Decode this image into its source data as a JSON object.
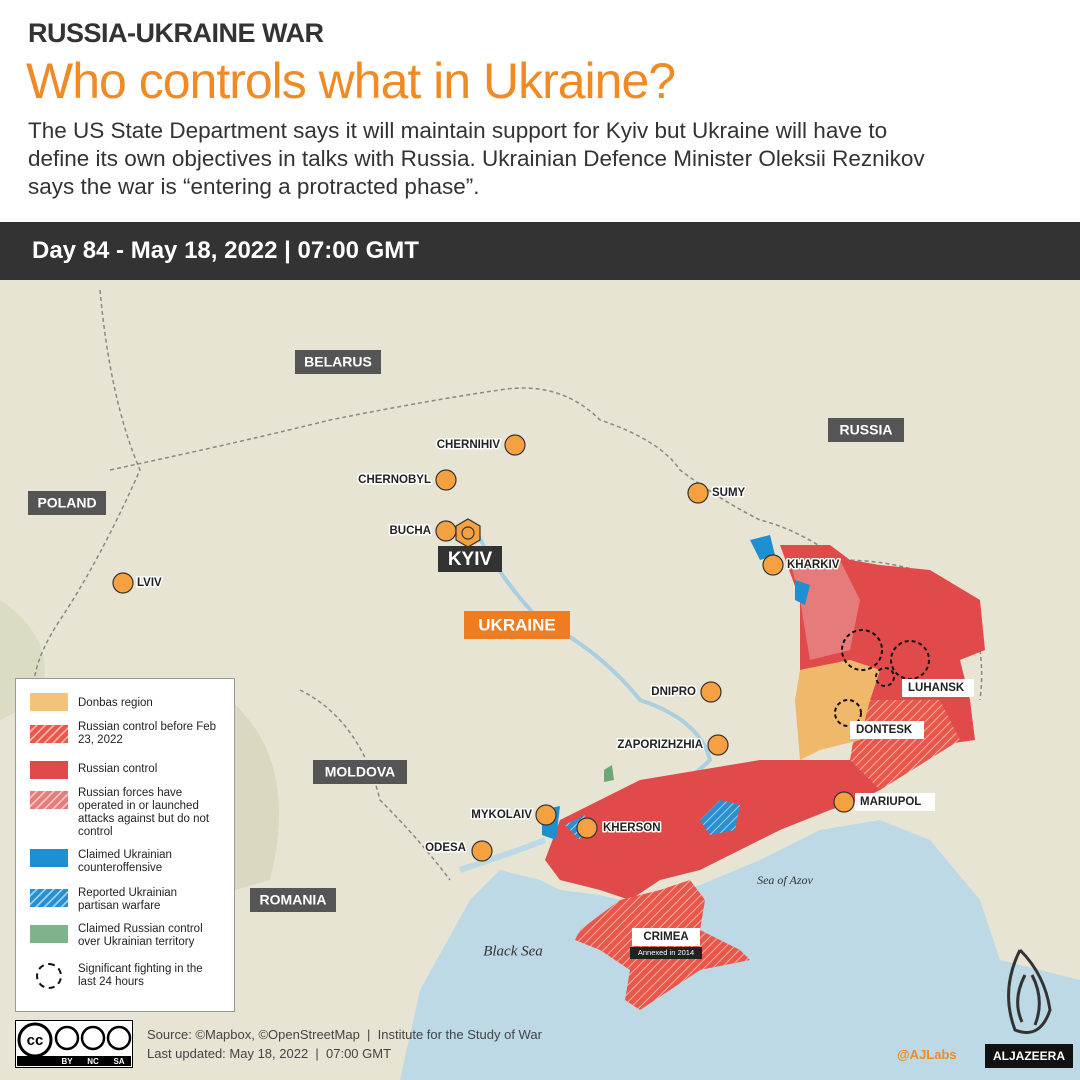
{
  "header": {
    "kicker": "RUSSIA-UKRAINE WAR",
    "title": "Who controls what in Ukraine?",
    "description": [
      "The US State Department says it will maintain support for Kyiv but Ukraine will have to",
      "define its own objectives in talks with Russia. Ukrainian Defence Minister Oleksii Reznikov",
      "says the war is “entering a protracted phase”."
    ]
  },
  "banner": {
    "date": "Day 84 - May 18, 2022 | 07:00 GMT"
  },
  "map": {
    "countries": [
      "BELARUS",
      "RUSSIA",
      "POLAND",
      "MOLDOVA",
      "ROMANIA",
      "UKRAINE"
    ],
    "capital": "KYIV",
    "cities": [
      "CHERNIHIV",
      "CHERNOBYL",
      "BUCHA",
      "LVIV",
      "SUMY",
      "KHARKIV",
      "LUHANSK",
      "DONTESK",
      "DNIPRO",
      "ZAPORIZHZHIA",
      "MYKOLAIV",
      "KHERSON",
      "ODESA",
      "MARIUPOL"
    ],
    "crimea": {
      "label": "CRIMEA",
      "note": "Annexed in 2014"
    },
    "seas": [
      "Black Sea",
      "Sea of Azov"
    ]
  },
  "legend": {
    "items": [
      "Donbas region",
      "Russian control before Feb 23, 2022",
      "Russian control",
      "Russian forces have operated in or launched attacks against but do not control",
      "Claimed Ukrainian counteroffensive",
      "Reported Ukrainian partisan warfare",
      "Claimed Russian control over Ukrainian territory",
      "Significant fighting in the last 24 hours"
    ]
  },
  "footer": {
    "license_badge": "cc",
    "license": [
      "BY",
      "NC",
      "SA"
    ],
    "source": "Source: ©Mapbox, ©OpenStreetMap  |  Institute for the Study of War",
    "updated": "Last updated: May 18, 2022  |  07:00 GMT",
    "handle": "@AJLabs",
    "brand": "ALJAZEERA"
  }
}
